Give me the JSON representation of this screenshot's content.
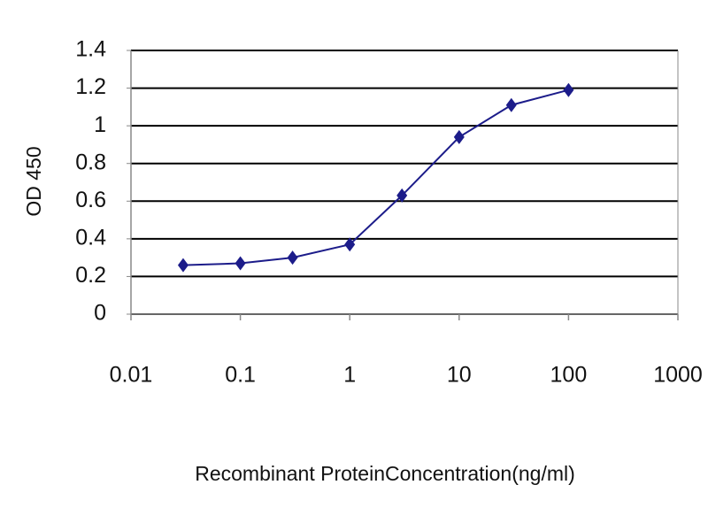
{
  "chart_data": {
    "type": "line",
    "x_label": "Recombinant ProteinConcentration(ng/ml)",
    "y_label": "OD 450",
    "x": [
      0.03,
      0.1,
      0.3,
      1,
      3,
      10,
      30,
      100
    ],
    "series": [
      {
        "color": "#1c1c8a",
        "values": [
          0.26,
          0.27,
          0.3,
          0.37,
          0.63,
          0.94,
          1.11,
          1.19
        ]
      }
    ],
    "xscale": "log",
    "xlim": [
      0.01,
      1000
    ],
    "xticks": [
      0.01,
      0.1,
      1,
      10,
      100,
      1000
    ],
    "ylim": [
      0,
      1.4
    ],
    "yticks": [
      0,
      0.2,
      0.4,
      0.6,
      0.8,
      1,
      1.2,
      1.4
    ],
    "grid": true
  }
}
